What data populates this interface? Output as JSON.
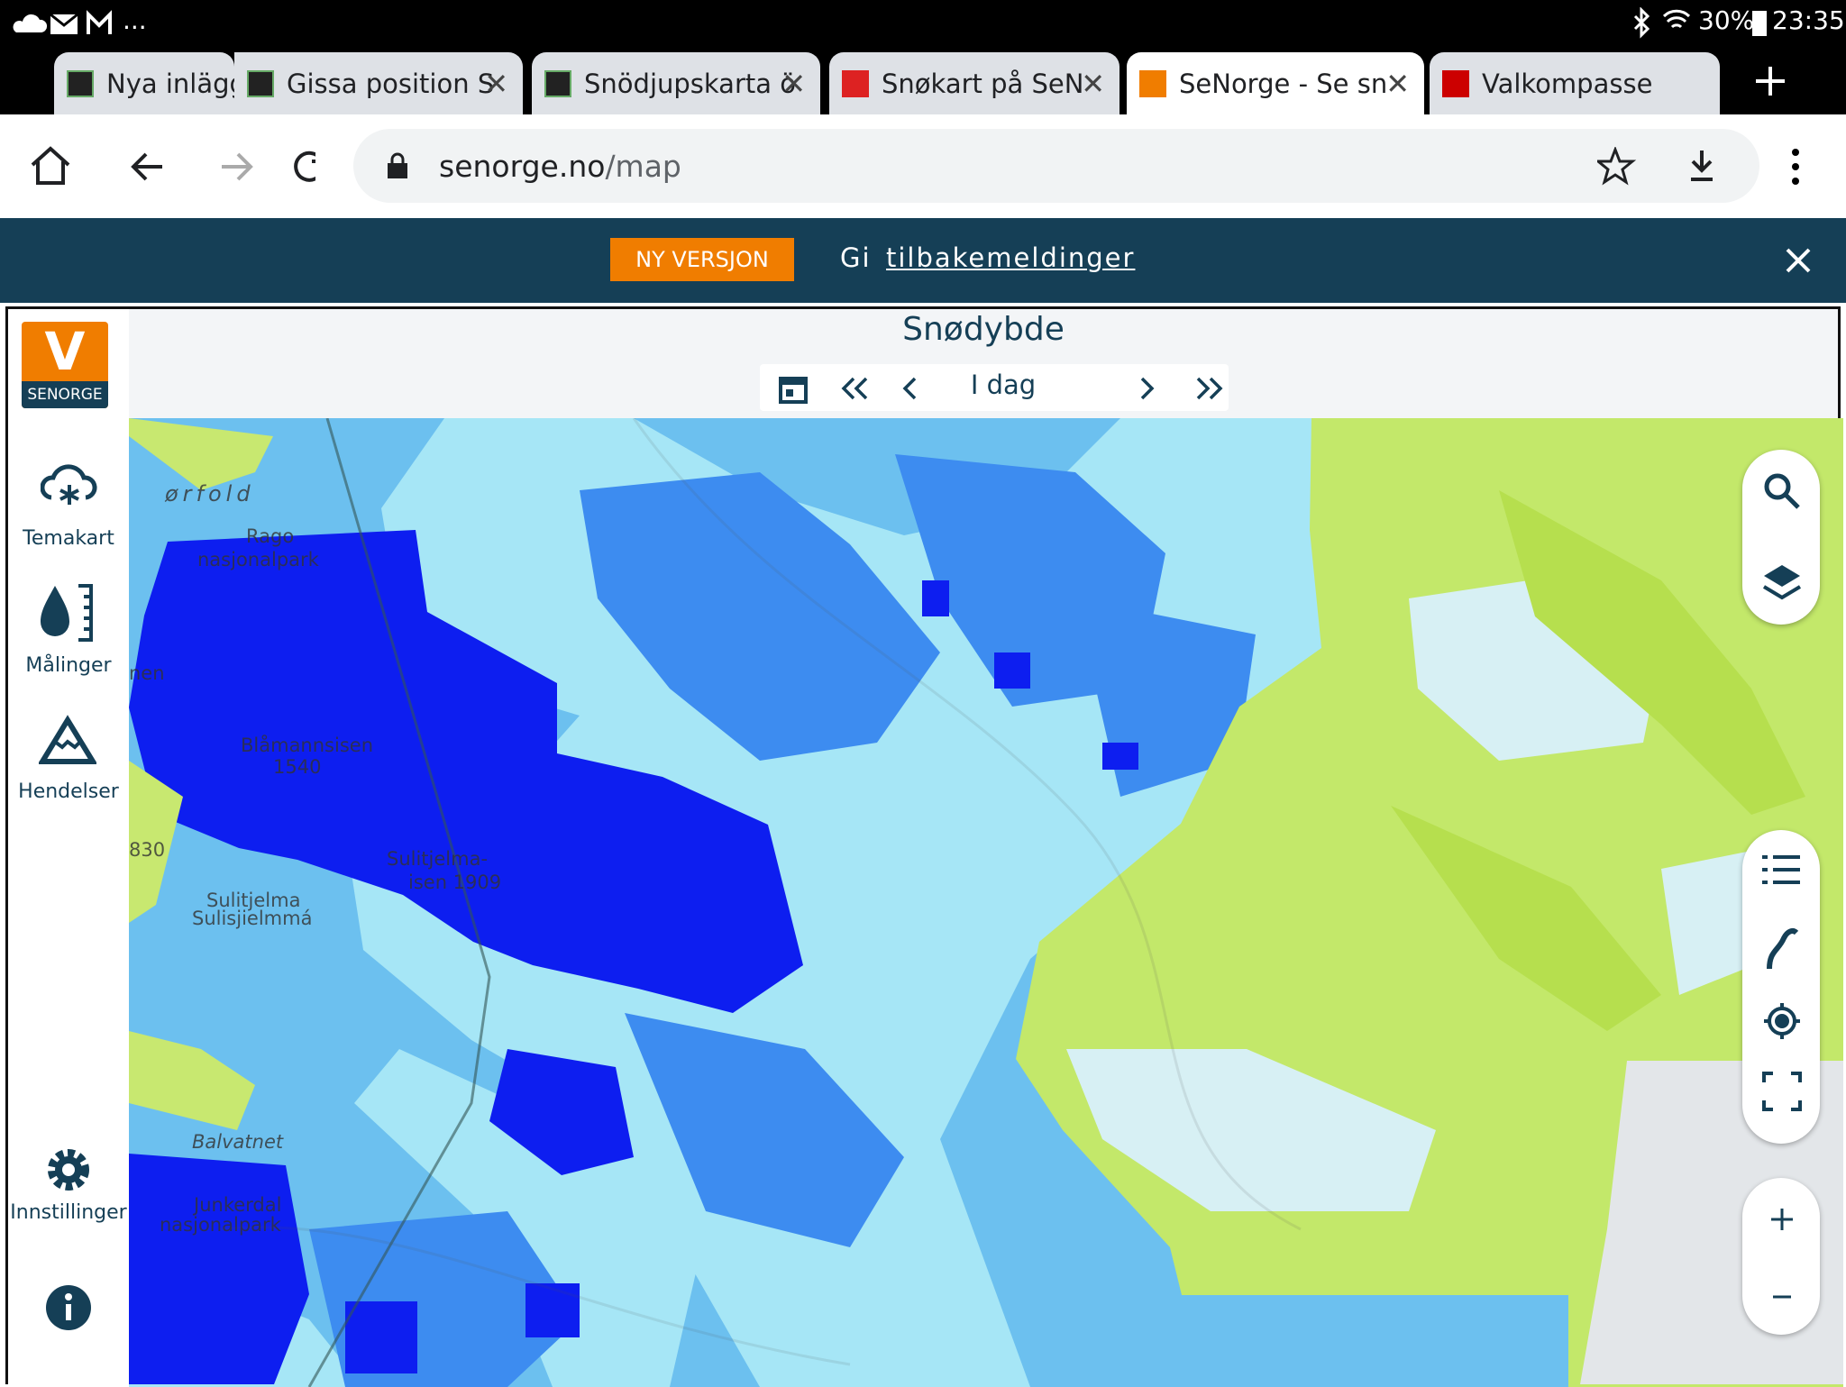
{
  "status_bar": {
    "more": "...",
    "battery": "30%",
    "time": "23:35"
  },
  "tabs": [
    {
      "title": "Nya inlägg"
    },
    {
      "title": "Gissa position S"
    },
    {
      "title": "Snödjupskarta ö"
    },
    {
      "title": "Snøkart på SeN"
    },
    {
      "title": "SeNorge - Se sn"
    },
    {
      "title": "Valkompasse"
    }
  ],
  "address_bar": {
    "host": "senorge.no",
    "path": "/map"
  },
  "banner": {
    "badge": "NY VERSJON",
    "text": "Gi",
    "link": "tilbakemeldinger"
  },
  "sidebar": {
    "logo_letter": "V",
    "logo_name": "SENORGE",
    "items": [
      "Temakart",
      "Målinger",
      "Hendelser",
      "Innstillinger"
    ]
  },
  "map": {
    "title": "Snødybde",
    "date": "I dag",
    "labels": [
      "ørfold",
      "Rago",
      "nasjonalpark",
      "nen",
      "Blåmannsisen",
      "1540",
      "830",
      "Sulitjelma-",
      "isen 1909",
      "Sulitjelma",
      "Sulisjielmmá",
      "Balvatnet",
      "Junkerdal",
      "nasjonalpark"
    ]
  }
}
